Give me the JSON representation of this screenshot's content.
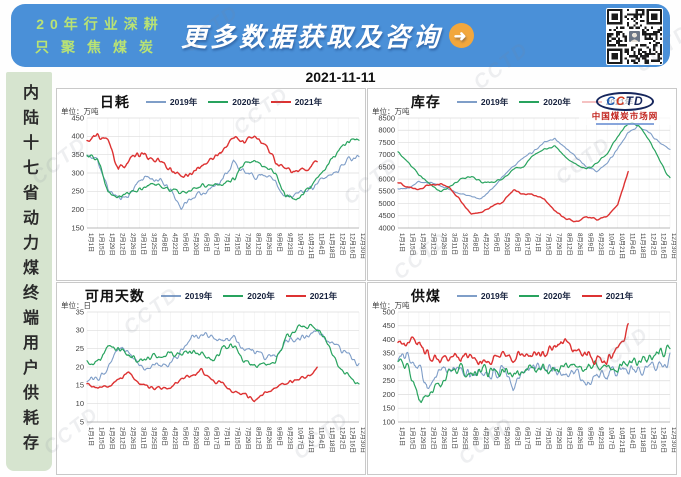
{
  "header": {
    "slogan_line1": "20年行业深耕",
    "slogan_line2": "只聚焦煤炭",
    "title": "更多数据获取及咨询",
    "arrow_icon": "➜",
    "banner_color": "#4a90d8",
    "slogan_color": "#b9e374"
  },
  "date": "2021-11-11",
  "sidebar": {
    "text": "内陆十七省动力煤终端用户供耗存",
    "bg_color": "#d6e4cf"
  },
  "watermark": "CCTD",
  "logo": {
    "text": "CCTD",
    "letter_colors": [
      "#1b57b0",
      "#d23a22",
      "#16265c",
      "#16265c"
    ],
    "site": "中国煤炭市场网"
  },
  "series_colors": {
    "2019年": "#7f9ec8",
    "2020年": "#28a35e",
    "2021年": "#dd3232"
  },
  "chart_data": [
    {
      "type": "line",
      "title": "日耗",
      "unit": "单位：万吨",
      "ylim": [
        150,
        450
      ],
      "yticks": [
        150,
        200,
        250,
        300,
        350,
        400,
        450
      ],
      "has_logo": false,
      "categories": [
        "1月1日",
        "1月15日",
        "1月29日",
        "2月12日",
        "2月26日",
        "3月11日",
        "3月25日",
        "4月8日",
        "4月22日",
        "5月6日",
        "5月20日",
        "6月3日",
        "6月17日",
        "7月1日",
        "7月15日",
        "7月29日",
        "8月12日",
        "8月26日",
        "9月9日",
        "9月23日",
        "10月7日",
        "10月21日",
        "11月4日",
        "11月18日",
        "12月2日",
        "12月16日",
        "12月30日"
      ],
      "series": [
        {
          "name": "2019年",
          "color": "#7f9ec8",
          "seed": 11,
          "noise_amp": 7,
          "width": 1.1,
          "values": [
            345,
            338,
            255,
            232,
            238,
            282,
            288,
            278,
            252,
            205,
            232,
            245,
            262,
            285,
            330,
            302,
            290,
            298,
            278,
            232,
            242,
            252,
            272,
            292,
            310,
            338,
            350
          ]
        },
        {
          "name": "2020年",
          "color": "#28a35e",
          "seed": 22,
          "noise_amp": 6,
          "width": 1.2,
          "values": [
            350,
            342,
            252,
            238,
            246,
            256,
            270,
            265,
            255,
            245,
            250,
            268,
            270,
            272,
            282,
            322,
            332,
            320,
            300,
            236,
            230,
            252,
            282,
            322,
            358,
            388,
            395
          ]
        },
        {
          "name": "2021年",
          "color": "#dd3232",
          "seed": 33,
          "noise_amp": 7,
          "width": 1.4,
          "values": [
            385,
            402,
            388,
            308,
            332,
            352,
            340,
            330,
            310,
            290,
            300,
            320,
            340,
            362,
            398,
            385,
            403,
            378,
            330,
            310,
            300,
            312,
            328
          ]
        }
      ]
    },
    {
      "type": "line",
      "title": "库存",
      "unit": "单位：万吨",
      "ylim": [
        4000,
        8500
      ],
      "yticks": [
        4000,
        4500,
        5000,
        5500,
        6000,
        6500,
        7000,
        7500,
        8000,
        8500
      ],
      "has_logo": true,
      "categories": [
        "1月1日",
        "1月15日",
        "1月29日",
        "2月12日",
        "2月26日",
        "3月11日",
        "3月25日",
        "4月8日",
        "4月22日",
        "5月6日",
        "5月20日",
        "6月3日",
        "6月17日",
        "7月1日",
        "7月15日",
        "7月29日",
        "8月12日",
        "8月26日",
        "9月9日",
        "9月23日",
        "10月7日",
        "10月21日",
        "11月4日",
        "11月18日",
        "12月2日",
        "12月16日",
        "12月30日"
      ],
      "series": [
        {
          "name": "2019年",
          "color": "#7f9ec8",
          "seed": 44,
          "noise_amp": 35,
          "width": 1.1,
          "values": [
            5600,
            5620,
            5900,
            5850,
            5750,
            5550,
            5400,
            5300,
            5200,
            5600,
            6100,
            6500,
            6900,
            7150,
            7500,
            7650,
            7300,
            6900,
            6500,
            6300,
            6650,
            7250,
            7900,
            8150,
            7900,
            7500,
            7200
          ]
        },
        {
          "name": "2020年",
          "color": "#28a35e",
          "seed": 55,
          "noise_amp": 35,
          "width": 1.2,
          "values": [
            7100,
            6700,
            6200,
            5800,
            5500,
            5700,
            6000,
            6100,
            5900,
            5850,
            6000,
            6400,
            6500,
            7000,
            7250,
            7350,
            6900,
            6600,
            6400,
            6650,
            7050,
            7750,
            8300,
            8200,
            7600,
            6800,
            6000
          ]
        },
        {
          "name": "2021年",
          "color": "#dd3232",
          "seed": 66,
          "noise_amp": 35,
          "width": 1.4,
          "values": [
            5900,
            5650,
            5600,
            5750,
            5800,
            5650,
            5100,
            4600,
            4650,
            4900,
            5050,
            5550,
            5400,
            5350,
            5200,
            4700,
            4400,
            4250,
            4450,
            4350,
            4500,
            4950,
            6300
          ]
        }
      ]
    },
    {
      "type": "line",
      "title": "可用天数",
      "unit": "单位：日",
      "ylim": [
        5,
        35
      ],
      "yticks": [
        5,
        10,
        15,
        20,
        25,
        30,
        35
      ],
      "has_logo": false,
      "categories": [
        "1月1日",
        "1月15日",
        "1月29日",
        "2月12日",
        "2月26日",
        "3月11日",
        "3月25日",
        "4月8日",
        "4月22日",
        "5月6日",
        "5月20日",
        "6月3日",
        "6月17日",
        "7月1日",
        "7月15日",
        "7月29日",
        "8月12日",
        "8月26日",
        "9月9日",
        "9月23日",
        "10月7日",
        "10月21日",
        "11月4日",
        "11月18日",
        "12月2日",
        "12月16日",
        "12月30日"
      ],
      "series": [
        {
          "name": "2019年",
          "color": "#7f9ec8",
          "seed": 77,
          "noise_amp": 0.8,
          "width": 1.1,
          "values": [
            16.5,
            17,
            20,
            25.5,
            24,
            20.5,
            20,
            21,
            21,
            24.5,
            28,
            28.5,
            28,
            27,
            28.5,
            25,
            24,
            23,
            23,
            26.5,
            27.5,
            28.5,
            30,
            27,
            25,
            23,
            21
          ]
        },
        {
          "name": "2020年",
          "color": "#28a35e",
          "seed": 88,
          "noise_amp": 0.8,
          "width": 1.2,
          "values": [
            21,
            21.5,
            25.5,
            25,
            23,
            22,
            22.5,
            23,
            23.5,
            23.5,
            24,
            23.5,
            22,
            25,
            25.5,
            22,
            20.5,
            20.5,
            21.5,
            28,
            30.5,
            31.5,
            30.5,
            26,
            21,
            17.5,
            15
          ]
        },
        {
          "name": "2021年",
          "color": "#dd3232",
          "seed": 99,
          "noise_amp": 0.5,
          "width": 1.4,
          "values": [
            15.5,
            14.5,
            14.5,
            16.5,
            18.5,
            15.5,
            14.5,
            14,
            14.5,
            16.5,
            17.5,
            19,
            16.5,
            15.5,
            13,
            12.5,
            11,
            13,
            14.5,
            15.5,
            16.5,
            17,
            19.8
          ]
        }
      ]
    },
    {
      "type": "line",
      "title": "供煤",
      "unit": "单位：万吨",
      "ylim": [
        100,
        500
      ],
      "yticks": [
        100,
        150,
        200,
        250,
        300,
        350,
        400,
        450,
        500
      ],
      "has_logo": false,
      "categories": [
        "1月1日",
        "1月15日",
        "1月29日",
        "2月12日",
        "2月26日",
        "3月11日",
        "3月25日",
        "4月8日",
        "4月22日",
        "5月6日",
        "5月20日",
        "6月3日",
        "6月17日",
        "7月1日",
        "7月15日",
        "7月29日",
        "8月12日",
        "8月26日",
        "9月9日",
        "9月23日",
        "10月7日",
        "10月21日",
        "11月4日",
        "11月18日",
        "12月2日",
        "12月16日",
        "12月30日"
      ],
      "series": [
        {
          "name": "2019年",
          "color": "#7f9ec8",
          "seed": 101,
          "noise_amp": 20,
          "width": 1.1,
          "values": [
            330,
            348,
            300,
            230,
            288,
            298,
            282,
            272,
            282,
            272,
            282,
            232,
            298,
            288,
            298,
            288,
            278,
            282,
            242,
            272,
            262,
            288,
            292,
            298,
            302,
            312,
            322
          ]
        },
        {
          "name": "2020年",
          "color": "#28a35e",
          "seed": 102,
          "noise_amp": 18,
          "width": 1.2,
          "values": [
            310,
            290,
            180,
            205,
            230,
            288,
            298,
            272,
            282,
            282,
            288,
            282,
            288,
            298,
            292,
            298,
            308,
            302,
            298,
            308,
            298,
            298,
            308,
            318,
            338,
            348,
            358
          ]
        },
        {
          "name": "2021年",
          "color": "#dd3232",
          "seed": 103,
          "noise_amp": 16,
          "width": 1.4,
          "values": [
            390,
            400,
            390,
            340,
            330,
            340,
            330,
            330,
            310,
            330,
            340,
            340,
            350,
            340,
            350,
            380,
            390,
            360,
            340,
            330,
            320,
            380,
            428
          ]
        }
      ]
    }
  ]
}
